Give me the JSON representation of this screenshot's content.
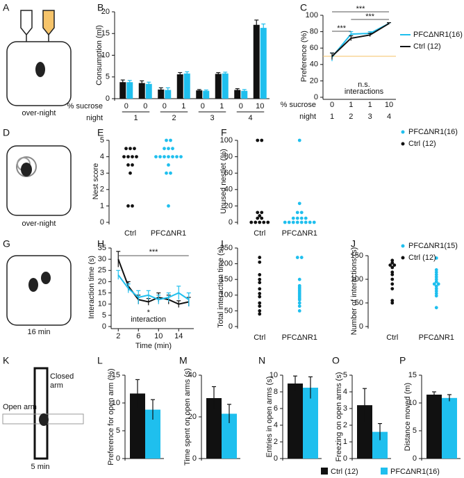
{
  "illustrations": [
    {
      "panel": "A",
      "caption": "over-night"
    },
    {
      "panel": "D",
      "caption": "over-night"
    },
    {
      "panel": "G",
      "caption": "16 min"
    },
    {
      "panel": "K",
      "labels": [
        "Closed",
        "arm",
        "Open arm",
        "5 min"
      ]
    }
  ],
  "legend": [
    {
      "name": "Ctrl (12)",
      "color": "#111111"
    },
    {
      "name": "PFCΔNR1(16)",
      "color": "#1fbfee"
    }
  ],
  "chart_data": [
    {
      "panel": "B",
      "type": "bar",
      "ylabel": "Consumption (ml)",
      "ylim": [
        0,
        20
      ],
      "yticks": [
        0,
        5,
        10,
        15,
        20
      ],
      "categories": [
        "0",
        "0",
        "0",
        "1",
        "0",
        "1",
        "0",
        "10"
      ],
      "category_label": "% sucrose",
      "groups": [
        "1",
        "2",
        "3",
        "4"
      ],
      "group_label": "night",
      "series": [
        {
          "color": "#111111",
          "values": [
            3.8,
            3.6,
            2.1,
            5.6,
            1.9,
            5.7,
            2.0,
            17.0
          ],
          "errors": [
            0.5,
            0.5,
            0.4,
            0.4,
            0.2,
            0.3,
            0.3,
            1.1
          ]
        },
        {
          "color": "#1fbfee",
          "values": [
            3.8,
            3.4,
            2.0,
            5.8,
            1.8,
            5.8,
            1.8,
            16.3
          ],
          "errors": [
            0.4,
            0.4,
            0.5,
            0.4,
            0.2,
            0.3,
            0.3,
            0.9
          ]
        }
      ]
    },
    {
      "panel": "C",
      "type": "line",
      "ylabel": "Preference (%)",
      "ylim": [
        0,
        100
      ],
      "yticks": [
        0,
        20,
        40,
        60,
        80,
        100
      ],
      "categories": [
        "0",
        "1",
        "1",
        "10"
      ],
      "category_label": "% sucrose",
      "groups": [
        "1",
        "2",
        "3",
        "4"
      ],
      "group_label": "night",
      "hline": 50,
      "hline_color": "#f5c163",
      "series": [
        {
          "name": "PFCΔNR1(16)",
          "color": "#1fbfee",
          "values": [
            49,
            77,
            78,
            90
          ],
          "errors": [
            5,
            3,
            2,
            1
          ]
        },
        {
          "name": "Ctrl (12)",
          "color": "#111111",
          "values": [
            50,
            72,
            76,
            90
          ],
          "errors": [
            4,
            3,
            2,
            1
          ]
        }
      ],
      "annotations": [
        "***",
        "***",
        "***",
        "n.s.",
        "interactions"
      ]
    },
    {
      "panel": "E",
      "type": "strip",
      "ylabel": "Nest score",
      "ylim": [
        0,
        5
      ],
      "yticks": [
        0,
        1,
        2,
        3,
        4,
        5
      ],
      "categories": [
        "Ctrl",
        "PFCΔNR1"
      ],
      "series": [
        {
          "color": "#111111",
          "values": [
            4.5,
            4.5,
            4.5,
            4,
            4,
            4,
            4,
            3.5,
            3.5,
            3,
            1,
            1
          ]
        },
        {
          "color": "#1fbfee",
          "values": [
            5,
            5,
            4.5,
            4.5,
            4.5,
            4,
            4,
            4,
            4,
            4,
            4,
            4,
            3.5,
            3,
            3,
            1
          ]
        }
      ]
    },
    {
      "panel": "F",
      "type": "strip",
      "ylabel": "Unused nestlet (%)",
      "ylim": [
        0,
        100
      ],
      "yticks": [
        0,
        20,
        40,
        60,
        80,
        100
      ],
      "categories": [
        "Ctrl",
        "PFCΔNR1"
      ],
      "series": [
        {
          "name": "Ctrl (12)",
          "color": "#111111",
          "values": [
            100,
            100,
            12,
            12,
            8,
            5,
            5,
            0,
            0,
            0,
            0,
            0
          ]
        },
        {
          "name": "PFCΔNR1(16)",
          "color": "#1fbfee",
          "values": [
            100,
            23,
            12,
            12,
            5,
            5,
            5,
            5,
            0,
            0,
            0,
            0,
            0,
            0,
            0,
            0
          ]
        }
      ]
    },
    {
      "panel": "H",
      "type": "line",
      "ylabel": "Interaction time (s)",
      "xlabel": "Time (min)",
      "x": [
        2,
        4,
        6,
        8,
        10,
        12,
        14,
        16
      ],
      "xlim": [
        1,
        17
      ],
      "xticks": [
        2,
        6,
        10,
        14
      ],
      "ylim": [
        0,
        35
      ],
      "yticks": [
        0,
        5,
        10,
        15,
        20,
        25,
        30,
        35
      ],
      "series": [
        {
          "color": "#111111",
          "values": [
            30,
            18,
            12,
            11,
            13,
            12,
            10,
            11
          ],
          "errors": [
            3.5,
            2,
            2,
            1.5,
            2,
            2,
            1.5,
            2
          ]
        },
        {
          "color": "#1fbfee",
          "values": [
            23,
            17,
            13,
            14,
            12,
            13,
            15,
            12
          ],
          "errors": [
            2,
            2,
            3,
            2,
            2,
            2,
            3,
            3
          ]
        }
      ],
      "annotations": [
        "***",
        "*",
        "interaction"
      ]
    },
    {
      "panel": "I",
      "type": "strip",
      "ylabel": "Total interaction time (s)",
      "ylim": [
        0,
        250
      ],
      "yticks": [
        0,
        50,
        100,
        150,
        200,
        250
      ],
      "categories": [
        "Ctrl",
        "PFCΔNR1"
      ],
      "series": [
        {
          "color": "#111111",
          "values": [
            220,
            205,
            165,
            150,
            140,
            120,
            105,
            95,
            75,
            65,
            50,
            40
          ]
        },
        {
          "color": "#1fbfee",
          "values": [
            220,
            220,
            150,
            130,
            125,
            120,
            115,
            110,
            105,
            100,
            95,
            90,
            85,
            75,
            65,
            50
          ]
        }
      ]
    },
    {
      "panel": "J",
      "type": "strip",
      "ylabel": "Number of interactions (s)",
      "ylim": [
        0,
        150
      ],
      "yticks": [
        0,
        50,
        100,
        150
      ],
      "categories": [
        "Ctrl",
        "PFCΔNR1"
      ],
      "series": [
        {
          "name": "Ctrl (12)",
          "color": "#111111",
          "values": [
            140,
            135,
            130,
            130,
            125,
            115,
            110,
            100,
            90,
            80,
            55,
            50
          ]
        },
        {
          "name": "PFCΔNR1(15)",
          "color": "#1fbfee",
          "values": [
            145,
            120,
            115,
            110,
            105,
            100,
            95,
            90,
            90,
            85,
            80,
            75,
            70,
            65,
            40
          ]
        }
      ]
    },
    {
      "panel": "L",
      "type": "bar",
      "ylabel": "Preference for open arm (%)",
      "ylim": [
        0,
        15
      ],
      "yticks": [
        0,
        5,
        10,
        15
      ],
      "values": [
        11.7,
        8.8
      ],
      "errors": [
        2.5,
        1.8
      ],
      "colors": [
        "#111111",
        "#1fbfee"
      ]
    },
    {
      "panel": "M",
      "type": "bar",
      "ylabel": "Time spent on open arms (s)",
      "ylim": [
        0,
        40
      ],
      "yticks": [
        0,
        20,
        40
      ],
      "values": [
        29,
        21.5
      ],
      "errors": [
        5.5,
        4.5
      ],
      "colors": [
        "#111111",
        "#1fbfee"
      ]
    },
    {
      "panel": "N",
      "type": "bar",
      "ylabel": "Entries in open arms (s)",
      "ylim": [
        0,
        10
      ],
      "yticks": [
        0,
        2,
        4,
        6,
        8,
        10
      ],
      "values": [
        9,
        8.5
      ],
      "errors": [
        0.9,
        1.3
      ],
      "colors": [
        "#111111",
        "#1fbfee"
      ]
    },
    {
      "panel": "O",
      "type": "bar",
      "ylabel": "Freezing on open arms (s)",
      "ylim": [
        0,
        5
      ],
      "yticks": [
        0,
        1,
        2,
        3,
        4,
        5
      ],
      "values": [
        3.2,
        1.6
      ],
      "errors": [
        1.0,
        0.5
      ],
      "colors": [
        "#111111",
        "#1fbfee"
      ]
    },
    {
      "panel": "P",
      "type": "bar",
      "ylabel": "Distance moved (m)",
      "ylim": [
        0,
        15
      ],
      "yticks": [
        0,
        5,
        10,
        15
      ],
      "values": [
        11.5,
        10.9
      ],
      "errors": [
        0.5,
        0.6
      ],
      "colors": [
        "#111111",
        "#1fbfee"
      ]
    }
  ]
}
